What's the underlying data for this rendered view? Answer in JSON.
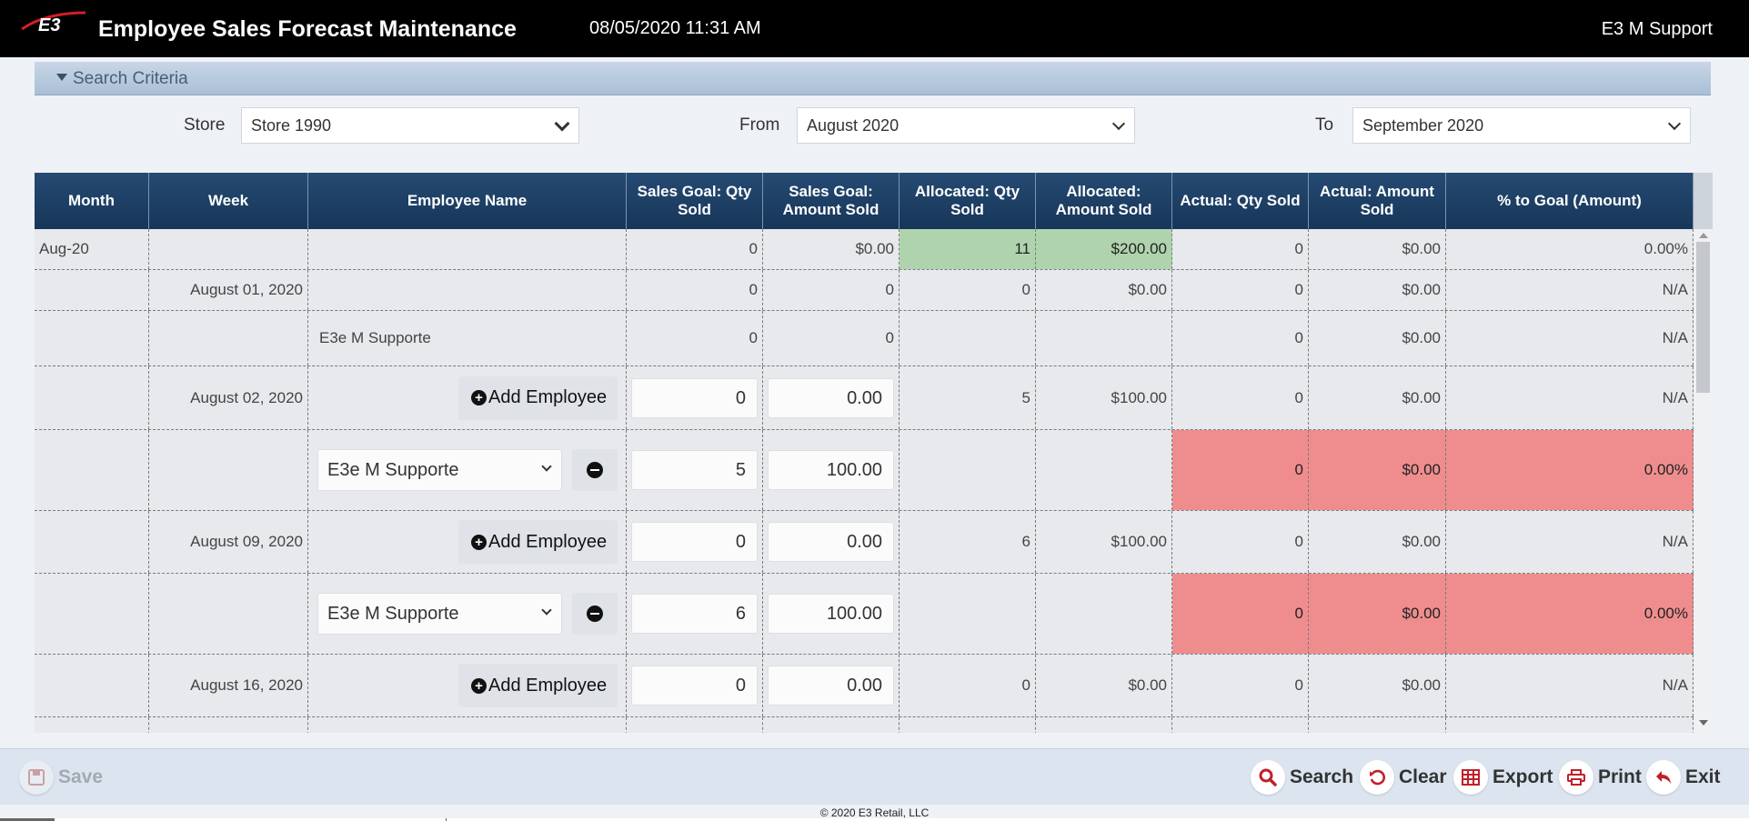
{
  "header": {
    "logo_text": "E3",
    "title": "Employee Sales Forecast Maintenance",
    "datetime": "08/05/2020 11:31 AM",
    "user": "E3 M Support"
  },
  "search_criteria": {
    "label": "Search Criteria",
    "store_label": "Store",
    "store_value": "Store 1990",
    "from_label": "From",
    "from_value": "August 2020",
    "to_label": "To",
    "to_value": "September 2020"
  },
  "grid": {
    "columns": [
      "Month",
      "Week",
      "Employee Name",
      "Sales Goal: Qty Sold",
      "Sales Goal: Amount Sold",
      "Allocated: Qty Sold",
      "Allocated: Amount Sold",
      "Actual: Qty Sold",
      "Actual: Amount Sold",
      "% to Goal (Amount)"
    ],
    "add_employee_label": "Add Employee",
    "rows": [
      {
        "kind": "month",
        "month": "Aug-20",
        "week": "",
        "employee": "",
        "goal_qty": "0",
        "goal_amt": "$0.00",
        "alloc_qty": "11",
        "alloc_amt": "$200.00",
        "act_qty": "0",
        "act_amt": "$0.00",
        "pct": "0.00%"
      },
      {
        "kind": "week-total",
        "month": "",
        "week": "August 01, 2020",
        "employee": "",
        "goal_qty": "0",
        "goal_amt": "0",
        "alloc_qty": "0",
        "alloc_amt": "$0.00",
        "act_qty": "0",
        "act_amt": "$0.00",
        "pct": "N/A"
      },
      {
        "kind": "employee-static",
        "month": "",
        "week": "",
        "employee": "E3e M Supporte",
        "goal_qty": "0",
        "goal_amt": "0",
        "alloc_qty": "",
        "alloc_amt": "",
        "act_qty": "0",
        "act_amt": "$0.00",
        "pct": "N/A"
      },
      {
        "kind": "week-edit",
        "month": "",
        "week": "August 02, 2020",
        "employee": "",
        "goal_qty": "0",
        "goal_amt": "0.00",
        "alloc_qty": "5",
        "alloc_amt": "$100.00",
        "act_qty": "0",
        "act_amt": "$0.00",
        "pct": "N/A"
      },
      {
        "kind": "employee-edit",
        "month": "",
        "week": "",
        "employee": "E3e M Supporte",
        "goal_qty": "5",
        "goal_amt": "100.00",
        "alloc_qty": "",
        "alloc_amt": "",
        "act_qty": "0",
        "act_amt": "$0.00",
        "pct": "0.00%"
      },
      {
        "kind": "week-edit",
        "month": "",
        "week": "August 09, 2020",
        "employee": "",
        "goal_qty": "0",
        "goal_amt": "0.00",
        "alloc_qty": "6",
        "alloc_amt": "$100.00",
        "act_qty": "0",
        "act_amt": "$0.00",
        "pct": "N/A"
      },
      {
        "kind": "employee-edit",
        "month": "",
        "week": "",
        "employee": "E3e M Supporte",
        "goal_qty": "6",
        "goal_amt": "100.00",
        "alloc_qty": "",
        "alloc_amt": "",
        "act_qty": "0",
        "act_amt": "$0.00",
        "pct": "0.00%"
      },
      {
        "kind": "week-edit",
        "month": "",
        "week": "August 16, 2020",
        "employee": "",
        "goal_qty": "0",
        "goal_amt": "0.00",
        "alloc_qty": "0",
        "alloc_amt": "$0.00",
        "act_qty": "0",
        "act_amt": "$0.00",
        "pct": "N/A"
      }
    ]
  },
  "toolbar": {
    "save": "Save",
    "search": "Search",
    "clear": "Clear",
    "export": "Export",
    "print": "Print",
    "exit": "Exit"
  },
  "footer": {
    "copyright": "© 2020 E3 Retail, LLC"
  },
  "colors": {
    "header_bg": "#000000",
    "grid_header": "#1f4268",
    "allocated_highlight": "#afd4ad",
    "actual_warning": "#ef8d8e",
    "toolbar_icon": "#c0202a"
  }
}
